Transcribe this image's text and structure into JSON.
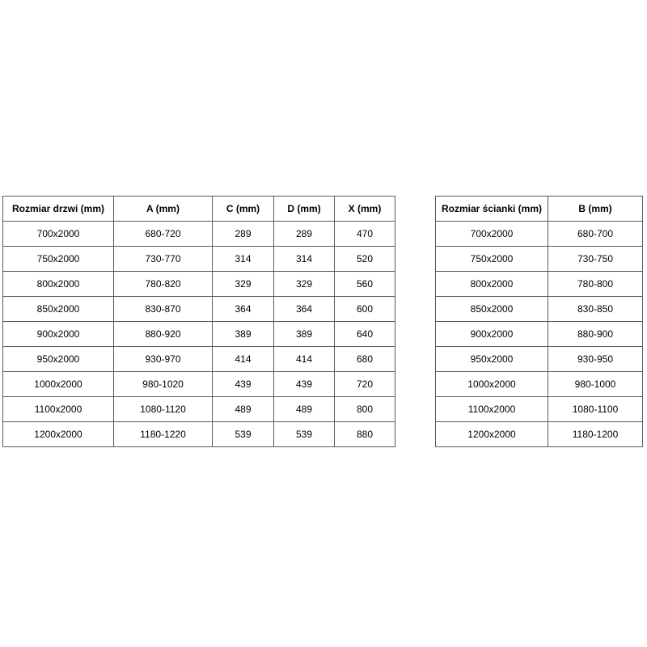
{
  "colors": {
    "background": "#ffffff",
    "border": "#595959",
    "text": "#000000"
  },
  "left_table": {
    "name": "door-size-table",
    "headers": [
      "Rozmiar drzwi (mm)",
      "A (mm)",
      "C (mm)",
      "D (mm)",
      "X (mm)"
    ],
    "rows": [
      [
        "700x2000",
        "680-720",
        "289",
        "289",
        "470"
      ],
      [
        "750x2000",
        "730-770",
        "314",
        "314",
        "520"
      ],
      [
        "800x2000",
        "780-820",
        "329",
        "329",
        "560"
      ],
      [
        "850x2000",
        "830-870",
        "364",
        "364",
        "600"
      ],
      [
        "900x2000",
        "880-920",
        "389",
        "389",
        "640"
      ],
      [
        "950x2000",
        "930-970",
        "414",
        "414",
        "680"
      ],
      [
        "1000x2000",
        "980-1020",
        "439",
        "439",
        "720"
      ],
      [
        "1100x2000",
        "1080-1120",
        "489",
        "489",
        "800"
      ],
      [
        "1200x2000",
        "1180-1220",
        "539",
        "539",
        "880"
      ]
    ]
  },
  "right_table": {
    "name": "wall-size-table",
    "headers": [
      "Rozmiar ścianki (mm)",
      "B (mm)"
    ],
    "rows": [
      [
        "700x2000",
        "680-700"
      ],
      [
        "750x2000",
        "730-750"
      ],
      [
        "800x2000",
        "780-800"
      ],
      [
        "850x2000",
        "830-850"
      ],
      [
        "900x2000",
        "880-900"
      ],
      [
        "950x2000",
        "930-950"
      ],
      [
        "1000x2000",
        "980-1000"
      ],
      [
        "1100x2000",
        "1080-1100"
      ],
      [
        "1200x2000",
        "1180-1200"
      ]
    ]
  }
}
